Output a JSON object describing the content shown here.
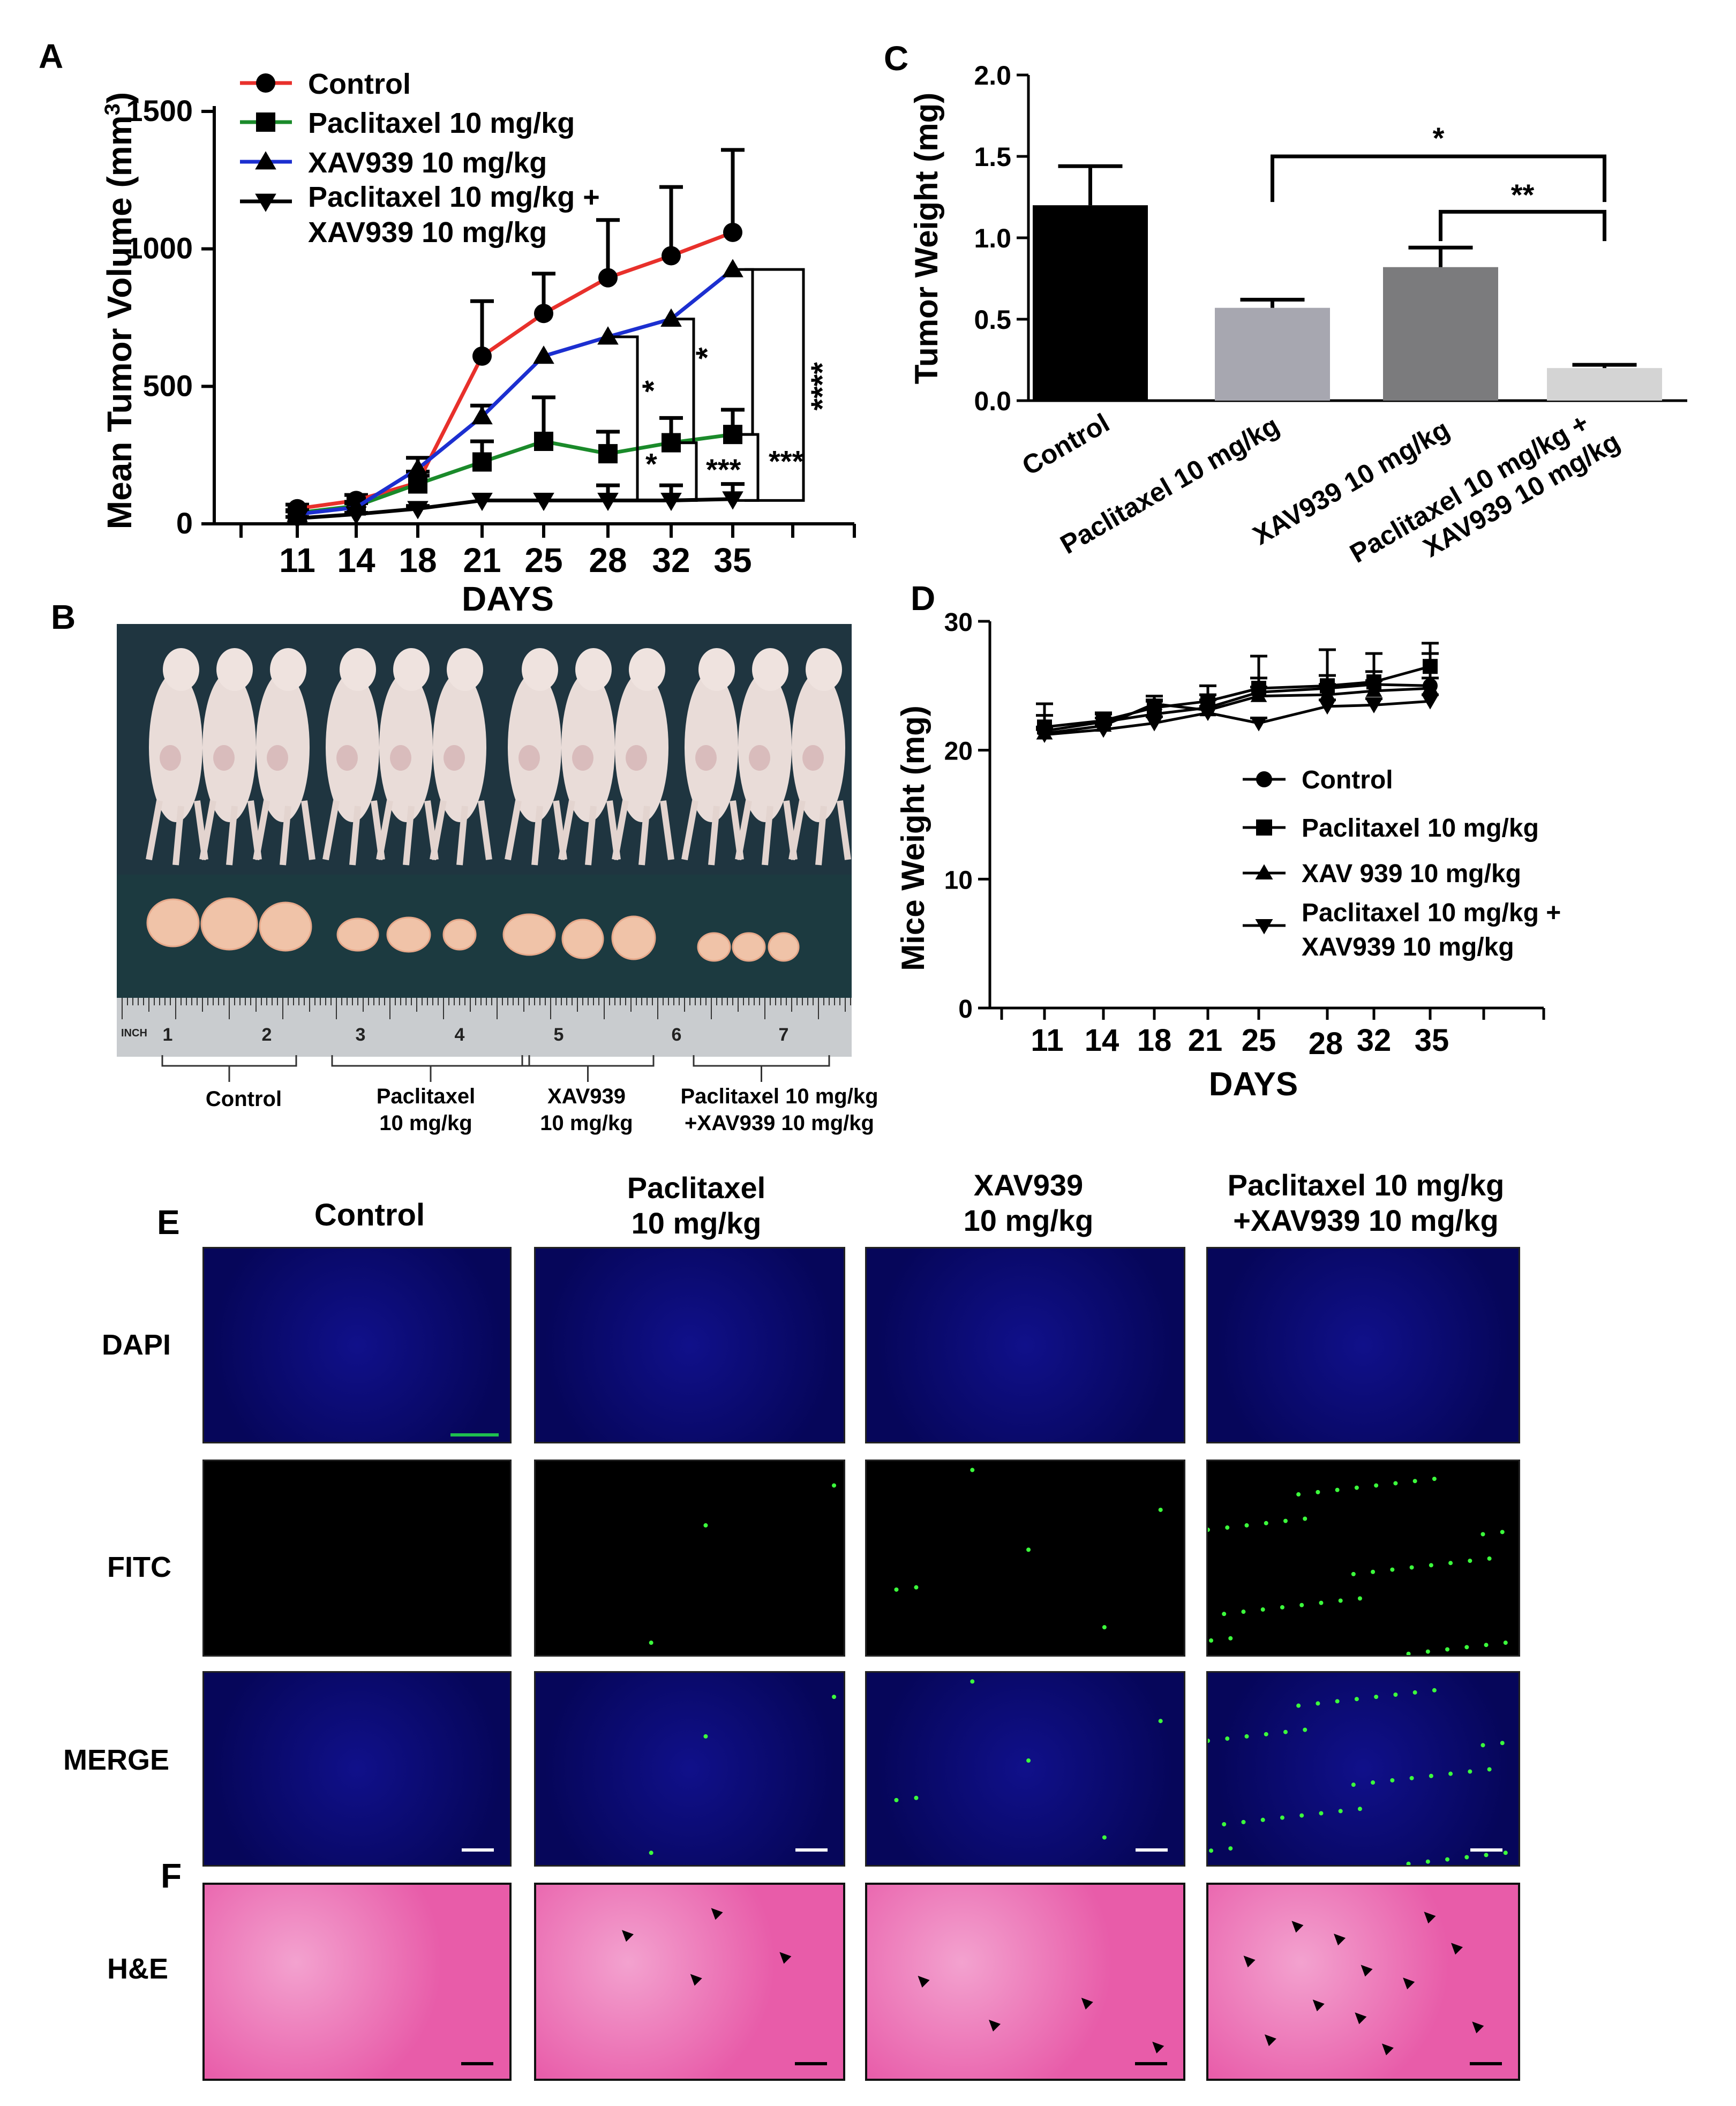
{
  "panels": {
    "A": {
      "letter": "A"
    },
    "B": {
      "letter": "B"
    },
    "C": {
      "letter": "C"
    },
    "D": {
      "letter": "D"
    },
    "E": {
      "letter": "E"
    },
    "F": {
      "letter": "F"
    }
  },
  "chart_data": [
    {
      "id": "A",
      "type": "line",
      "ylabel": "Mean Tumor Volume (mm",
      "ylabel_sup": "3",
      "ylabel_close": ")",
      "xlabel": "DAYS",
      "categories": [
        "11",
        "14",
        "18",
        "21",
        "25",
        "28",
        "32",
        "35"
      ],
      "yticks": [
        "0",
        "500",
        "1000",
        "1500"
      ],
      "ylim": [
        0,
        1500
      ],
      "series": [
        {
          "name": "Control",
          "color": "#e8302b",
          "marker": "circle",
          "values": [
            55,
            85,
            150,
            610,
            765,
            895,
            975,
            1060
          ],
          "err": [
            15,
            20,
            40,
            200,
            145,
            210,
            250,
            300
          ]
        },
        {
          "name": "Paclitaxel 10 mg/kg",
          "color": "#1a8a2a",
          "marker": "square",
          "values": [
            40,
            65,
            145,
            225,
            300,
            255,
            295,
            325
          ],
          "err": [
            10,
            15,
            30,
            75,
            160,
            80,
            90,
            90
          ]
        },
        {
          "name": "XAV939 10 mg/kg",
          "color": "#1c2fd0",
          "marker": "triangle",
          "values": [
            35,
            60,
            200,
            390,
            610,
            680,
            745,
            925
          ],
          "err": [
            10,
            15,
            40,
            40,
            0,
            0,
            0,
            0
          ]
        },
        {
          "name_line1": "Paclitaxel 10 mg/kg +",
          "name_line2": " XAV939 10 mg/kg",
          "color": "#000000",
          "marker": "triangle-down",
          "values": [
            20,
            35,
            55,
            85,
            85,
            85,
            85,
            90
          ],
          "err": [
            5,
            5,
            10,
            0,
            0,
            55,
            55,
            55
          ]
        }
      ],
      "significance": [
        "*",
        "***",
        "*",
        "***",
        "*",
        "****"
      ]
    },
    {
      "id": "C",
      "type": "bar",
      "ylabel": "Tumor Weight (mg)",
      "categories": [
        "Control",
        "Paclitaxel 10 mg/kg",
        "XAV939 10 mg/kg",
        "Paclitaxel 10 mg/kg +"
      ],
      "category4_line2": "XAV939 10 mg/kg",
      "values": [
        1.2,
        0.57,
        0.82,
        0.2
      ],
      "err": [
        0.24,
        0.05,
        0.12,
        0.02
      ],
      "colors": [
        "#000000",
        "#a7a7b0",
        "#7b7b7d",
        "#d4d4d4"
      ],
      "yticks": [
        "0.0",
        "0.5",
        "1.0",
        "1.5",
        "2.0"
      ],
      "ylim": [
        0,
        2.0
      ],
      "significance": [
        "*",
        "**"
      ]
    },
    {
      "id": "D",
      "type": "line",
      "ylabel": "Mice Weight (mg)",
      "xlabel": "DAYS",
      "categories": [
        "11",
        "14",
        "18",
        "21",
        "25",
        "28",
        "32",
        "35"
      ],
      "yticks": [
        "0",
        "10",
        "20",
        "30"
      ],
      "ylim": [
        0,
        30
      ],
      "series": [
        {
          "name": "Control",
          "marker": "circle",
          "values": [
            21.5,
            22.2,
            22.8,
            23.3,
            24.5,
            24.8,
            25.1,
            25.0
          ],
          "err": [
            1.2,
            0.6,
            1.0,
            1.0,
            2.8,
            3.0,
            2.4,
            2.5
          ]
        },
        {
          "name": "Paclitaxel 10 mg/kg",
          "marker": "square",
          "values": [
            21.8,
            22.3,
            23.3,
            23.8,
            24.8,
            25.0,
            25.3,
            26.5
          ],
          "err": [
            1.8,
            0.6,
            0.6,
            1.2,
            0.8,
            0.8,
            0.8,
            1.8
          ]
        },
        {
          "name": "XAV 939 10 mg/kg",
          "marker": "triangle",
          "values": [
            21.3,
            21.9,
            23.6,
            23.1,
            24.2,
            24.3,
            24.6,
            24.8
          ],
          "err": [
            0.5,
            0.6,
            0.6,
            0.8,
            0.7,
            0.8,
            0.8,
            0.8
          ]
        },
        {
          "name_line1": "Paclitaxel 10 mg/kg +",
          "name_line2": " XAV939 10 mg/kg",
          "marker": "triangle-down",
          "values": [
            21.2,
            21.6,
            22.1,
            22.9,
            22.1,
            23.4,
            23.5,
            23.8
          ],
          "err": [
            0.4,
            0.4,
            0.5,
            0.5,
            0.4,
            0.5,
            0.5,
            0.5
          ]
        }
      ]
    }
  ],
  "photo": {
    "groups": [
      {
        "line1": "Control",
        "line2": ""
      },
      {
        "line1": "Paclitaxel",
        "line2": "10 mg/kg"
      },
      {
        "line1": "XAV939",
        "line2": "10 mg/kg"
      },
      {
        "line1": "Paclitaxel 10 mg/kg",
        "line2": "+XAV939 10 mg/kg"
      }
    ],
    "ruler_numbers": [
      "1",
      "2",
      "3",
      "4",
      "5",
      "6",
      "7"
    ],
    "ruler_inch": "INCH"
  },
  "fluorescence": {
    "columns": [
      {
        "line1": "Control",
        "line2": ""
      },
      {
        "line1": "Paclitaxel",
        "line2": "10 mg/kg"
      },
      {
        "line1": "XAV939",
        "line2": "10 mg/kg"
      },
      {
        "line1": "Paclitaxel 10 mg/kg",
        "line2": "+XAV939 10 mg/kg"
      }
    ],
    "rows": [
      "DAPI",
      "FITC",
      "MERGE"
    ],
    "he_row": "H&E"
  },
  "colors": {
    "dapi": "#0a0a6e",
    "fitc": "#000000",
    "he": "#e85ca9"
  }
}
